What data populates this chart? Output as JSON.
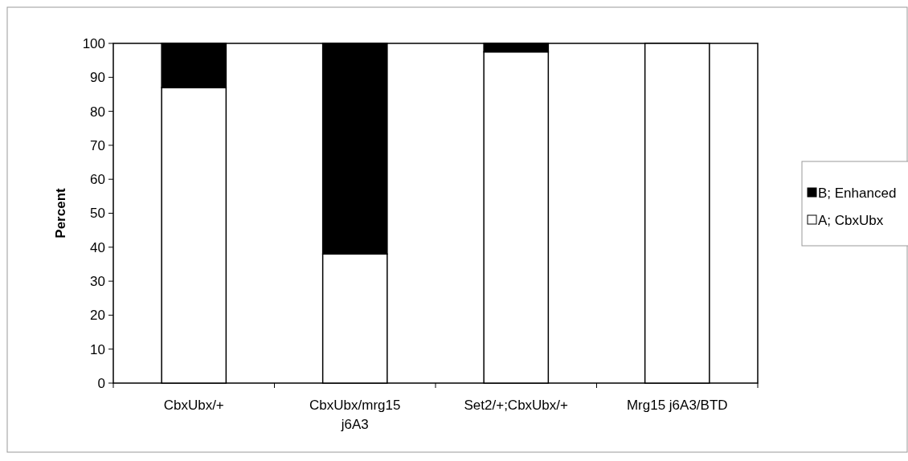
{
  "chart_data": {
    "type": "bar",
    "stacked": true,
    "ylabel": "Percent",
    "categories": [
      "CbxUbx/+",
      "CbxUbx/mrg15 j6A3",
      "Set2/+;CbxUbx/+",
      "Mrg15 j6A3/BTD"
    ],
    "series": [
      {
        "name": "A; CbxUbx",
        "color": "#ffffff",
        "values": [
          87,
          38,
          97.5,
          100
        ]
      },
      {
        "name": "B; Enhanced",
        "color": "#000000",
        "values": [
          13,
          62,
          2.5,
          0
        ]
      }
    ],
    "ylim": [
      0,
      100
    ],
    "yticks": [
      0,
      10,
      20,
      30,
      40,
      50,
      60,
      70,
      80,
      90,
      100
    ],
    "legend": "right"
  }
}
